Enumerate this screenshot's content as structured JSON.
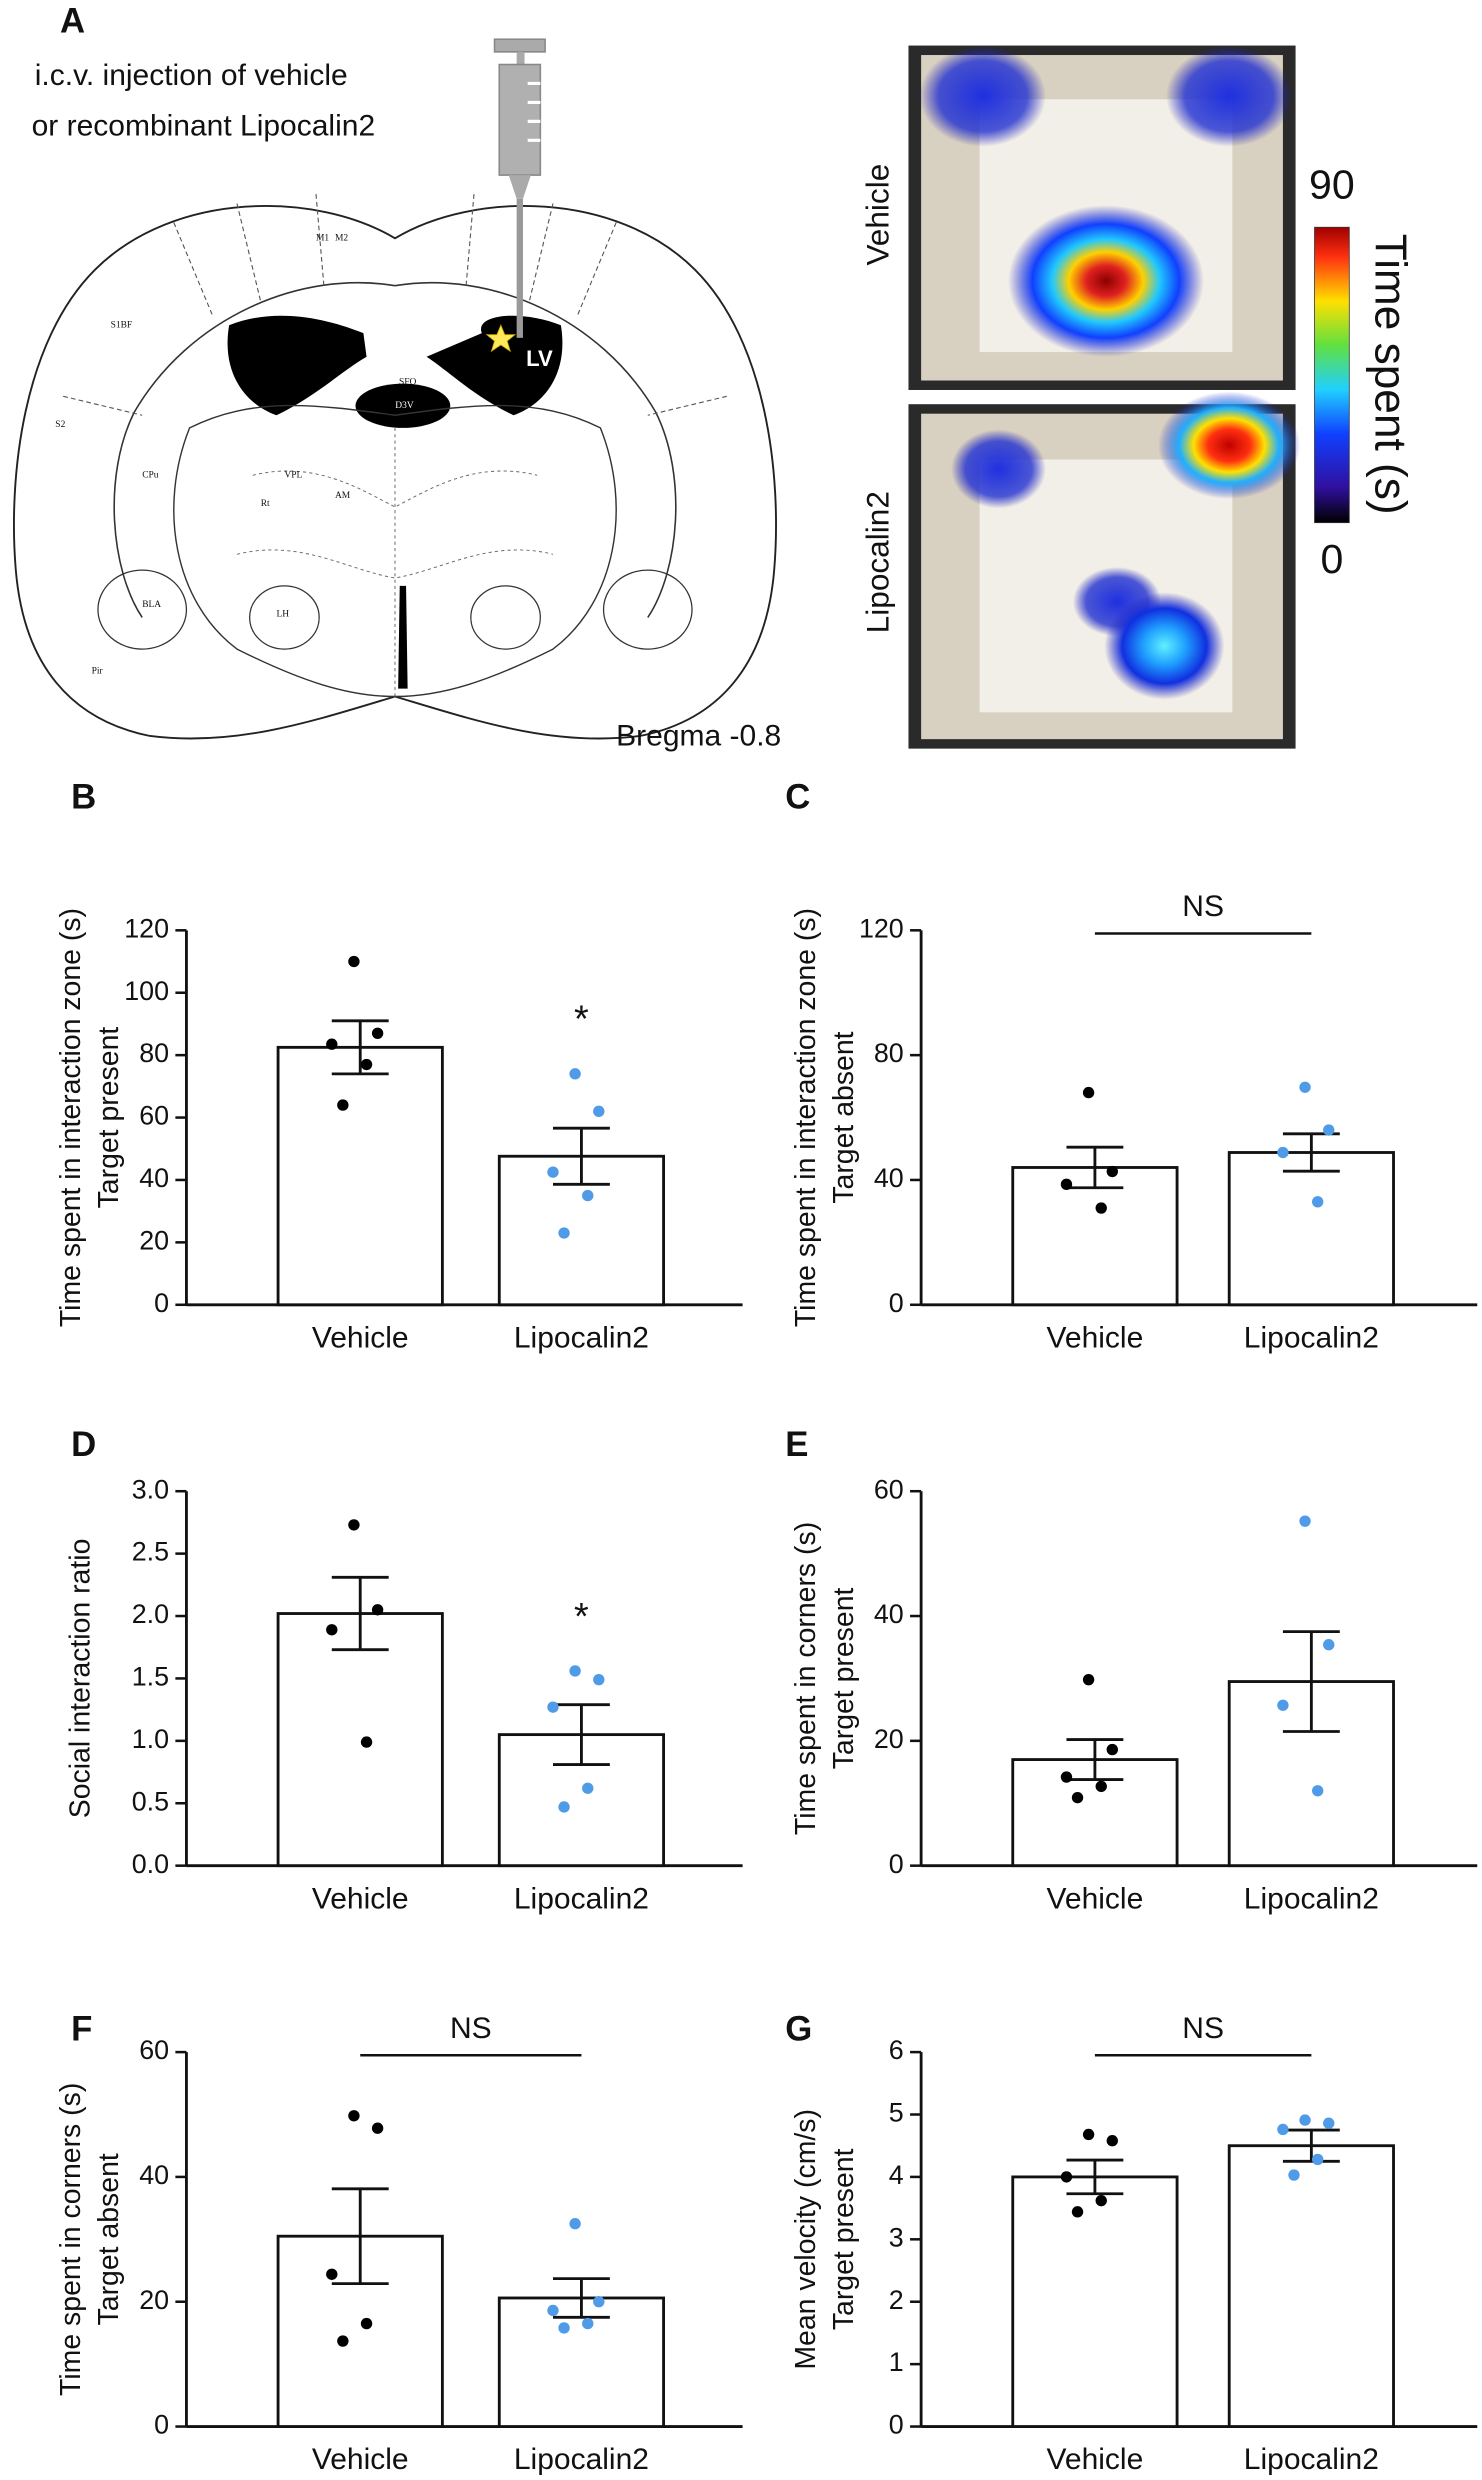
{
  "panel_a": {
    "label": "A",
    "injection_text": [
      "i.c.v. injection of vehicle",
      "or recombinant  Lipocalin2"
    ],
    "bregma": "Bregma -0.8",
    "lv": "LV",
    "atlas_labels": [
      "SFO",
      "D3V",
      "CPu",
      "S1BF",
      "M1",
      "M2",
      "S2",
      "Rt",
      "VPL",
      "LH",
      "AM",
      "BLA",
      "Pir"
    ],
    "heatmap_labels": [
      "Vehicle",
      "Lipocalin2"
    ],
    "colorbar": {
      "label": "Time spent (s)",
      "lim": [
        0,
        90
      ],
      "ticks": [
        90,
        0
      ]
    }
  },
  "chart_data": [
    {
      "type": "bar",
      "label": "B",
      "ylabel": [
        "Time spent in interaction zone (s)",
        "Target present"
      ],
      "categories": [
        "Vehicle",
        "Lipocalin2"
      ],
      "values": [
        82.5,
        47.6
      ],
      "errors": [
        8.5,
        9
      ],
      "points": [
        [
          110,
          87,
          83.5,
          77,
          64
        ],
        [
          74,
          62,
          42.5,
          35,
          23
        ]
      ],
      "point_colors": [
        "#000000",
        "#4f9be8"
      ],
      "ylim": [
        0,
        120
      ],
      "yticks": [
        0,
        20,
        40,
        60,
        80,
        100,
        120
      ],
      "annotation": {
        "text": "*",
        "bracket": false
      }
    },
    {
      "type": "bar",
      "label": "C",
      "ylabel": [
        "Time spent in interaction zone (s)",
        "Target absent"
      ],
      "categories": [
        "Vehicle",
        "Lipocalin2"
      ],
      "values": [
        44,
        48.8
      ],
      "errors": [
        6.5,
        6
      ],
      "points": [
        [
          68,
          42.7,
          38.6,
          31
        ],
        [
          69.7,
          56,
          48.8,
          33
        ]
      ],
      "point_colors": [
        "#000000",
        "#4f9be8"
      ],
      "ylim": [
        0,
        120
      ],
      "yticks": [
        0,
        40,
        80,
        120
      ],
      "annotation": {
        "text": "NS",
        "bracket": true
      }
    },
    {
      "type": "bar",
      "label": "D",
      "ylabel": [
        "Social interaction ratio"
      ],
      "categories": [
        "Vehicle",
        "Lipocalin2"
      ],
      "values": [
        2.02,
        1.05
      ],
      "errors": [
        0.29,
        0.24
      ],
      "points": [
        [
          2.73,
          2.05,
          1.89,
          0.99
        ],
        [
          1.56,
          1.49,
          1.27,
          0.62,
          0.47
        ]
      ],
      "point_colors": [
        "#000000",
        "#4f9be8"
      ],
      "ylim": [
        0,
        3
      ],
      "yticks": [
        {
          "value": 0,
          "label": "0.0"
        },
        0.5,
        {
          "value": 1,
          "label": "1.0"
        },
        1.5,
        {
          "value": 2,
          "label": "2.0"
        },
        2.5,
        {
          "value": 3,
          "label": "3.0"
        }
      ],
      "annotation": {
        "text": "*",
        "bracket": false
      }
    },
    {
      "type": "bar",
      "label": "E",
      "ylabel": [
        "Time spent in corners (s)",
        "Target present"
      ],
      "categories": [
        "Vehicle",
        "Lipocalin2"
      ],
      "values": [
        17,
        29.5
      ],
      "errors": [
        3.2,
        8
      ],
      "points": [
        [
          29.8,
          18.6,
          14.2,
          12.7,
          10.9
        ],
        [
          55.2,
          35.4,
          25.7,
          12
        ]
      ],
      "point_colors": [
        "#000000",
        "#4f9be8"
      ],
      "ylim": [
        0,
        60
      ],
      "yticks": [
        0,
        20,
        40,
        60
      ]
    },
    {
      "type": "bar",
      "label": "F",
      "ylabel": [
        "Time spent in corners (s)",
        "Target absent"
      ],
      "categories": [
        "Vehicle",
        "Lipocalin2"
      ],
      "values": [
        30.5,
        20.6
      ],
      "errors": [
        7.6,
        3.1
      ],
      "points": [
        [
          49.8,
          47.8,
          24.4,
          16.5,
          13.7
        ],
        [
          32.5,
          20,
          18.6,
          16.5,
          15.8
        ]
      ],
      "point_colors": [
        "#000000",
        "#4f9be8"
      ],
      "ylim": [
        0,
        60
      ],
      "yticks": [
        0,
        20,
        40,
        60
      ],
      "annotation": {
        "text": "NS",
        "bracket": true
      }
    },
    {
      "type": "bar",
      "label": "G",
      "ylabel": [
        "Mean velocity (cm/s)",
        "Target present"
      ],
      "categories": [
        "Vehicle",
        "Lipocalin2"
      ],
      "values": [
        4.0,
        4.5
      ],
      "errors": [
        0.27,
        0.25
      ],
      "points": [
        [
          4.68,
          4.58,
          4.0,
          3.62,
          3.44
        ],
        [
          4.91,
          4.86,
          4.76,
          4.28,
          4.03
        ]
      ],
      "point_colors": [
        "#000000",
        "#4f9be8"
      ],
      "ylim": [
        0,
        6
      ],
      "yticks": [
        0,
        1,
        2,
        3,
        4,
        5,
        6
      ],
      "annotation": {
        "text": "NS",
        "bracket": true
      }
    }
  ]
}
